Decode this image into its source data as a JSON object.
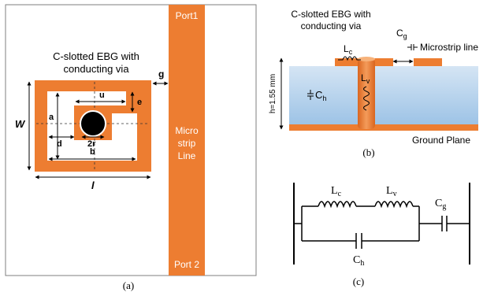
{
  "panel_a": {
    "title_line1": "C-slotted EBG with",
    "title_line2": "conducting via",
    "port1": "Port1",
    "port2": "Port 2",
    "line_label_1": "Micro",
    "line_label_2": "strip",
    "line_label_3": "Line",
    "dim_g": "g",
    "dim_u": "u",
    "dim_e": "e",
    "dim_a": "a",
    "dim_W": "W",
    "dim_d": "d",
    "dim_2r": "2r",
    "dim_b": "b",
    "dim_l": "l",
    "caption": "(a)"
  },
  "panel_b": {
    "title_line1": "C-slotted EBG with",
    "title_line2": "conducting via",
    "cg_main": "C",
    "cg_sub": "g",
    "microstrip": "Microstrip line",
    "lc_main": "L",
    "lc_sub": "c",
    "lv_main": "L",
    "lv_sub": "v",
    "ch_main": "C",
    "ch_sub": "h",
    "height": "h=1.55 mm",
    "ground": "Ground Plane",
    "caption": "(b)"
  },
  "panel_c": {
    "lc_main": "L",
    "lc_sub": "c",
    "lv_main": "L",
    "lv_sub": "v",
    "cg_main": "C",
    "cg_sub": "g",
    "ch_main": "C",
    "ch_sub": "h",
    "caption": "(c)"
  },
  "colors": {
    "copper": "#ed7d31",
    "substrate_top": "#c8dcf0",
    "substrate_bottom": "#9dc3e6",
    "border": "#7f7f7f"
  }
}
